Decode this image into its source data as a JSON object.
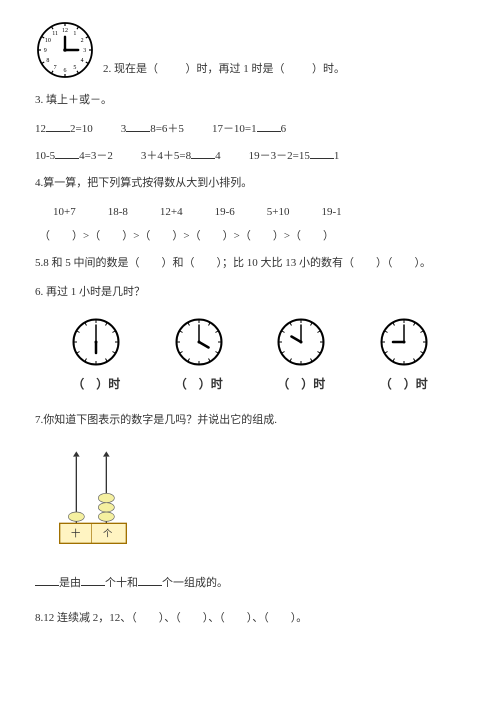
{
  "q2": {
    "prefix": "2.",
    "text_a": "现在是（",
    "text_b": "）时，再过 1 时是（",
    "text_c": "）时。",
    "clock": {
      "hour": 3,
      "minute": 0,
      "face_fill": "#ffffff",
      "stroke": "#000000",
      "stroke_w": 2,
      "numbers": [
        "12",
        "1",
        "2",
        "3",
        "4",
        "5",
        "6",
        "7",
        "8",
        "9",
        "10",
        "11"
      ]
    }
  },
  "q3": {
    "title": "3. 填上＋或－。",
    "line1": [
      {
        "a": "12",
        "b": "2=10"
      },
      {
        "a": "3",
        "b": "8=6＋5"
      },
      {
        "a": "17",
        "mid": "10=1",
        "b": "6",
        "prefix": "17－"
      }
    ],
    "line2": [
      {
        "a": "10-5",
        "b": "4=3－2"
      },
      {
        "a": "3＋4＋5=8",
        "b": "4"
      },
      {
        "a": "19－3－2=15",
        "b": "1"
      }
    ]
  },
  "q4": {
    "title": "4.算一算，把下列算式按得数从大到小排列。",
    "exprs": [
      "10+7",
      "18-8",
      "12+4",
      "19-6",
      "5+10",
      "19-1"
    ],
    "order_tpl": "（　　）>（　　）>（　　）>（　　）>（　　）>（　　）"
  },
  "q5": {
    "text": "5.8 和 5 中间的数是（　　）和（　　）；比 10 大比 13 小的数有（　　）（　　）。"
  },
  "q6": {
    "title": "6. 再过 1 小时是几时？",
    "clocks": [
      {
        "hour": 6,
        "minute": 0
      },
      {
        "hour": 4,
        "minute": 0
      },
      {
        "hour": 10,
        "minute": 0
      },
      {
        "hour": 9,
        "minute": 0
      }
    ],
    "label_open": "（",
    "label_close": "）时",
    "stroke": "#000000",
    "face_fill": "#ffffff"
  },
  "q7": {
    "title": "7.你知道下图表示的数字是几吗？并说出它的组成.",
    "abacus": {
      "frame_fill": "#fff4c2",
      "frame_stroke": "#a07000",
      "rod_color": "#333333",
      "bead_fill": "#f5f0a0",
      "bead_stroke": "#666666",
      "left_label": "十",
      "right_label": "个",
      "left_beads": 1,
      "right_beads": 3
    },
    "sentence_a": "是由",
    "sentence_b": "个十和",
    "sentence_c": "个一组成的。"
  },
  "q8": {
    "text": "8.12 连续减 2，12、（　　）、（　　）、（　　）、（　　）。"
  }
}
